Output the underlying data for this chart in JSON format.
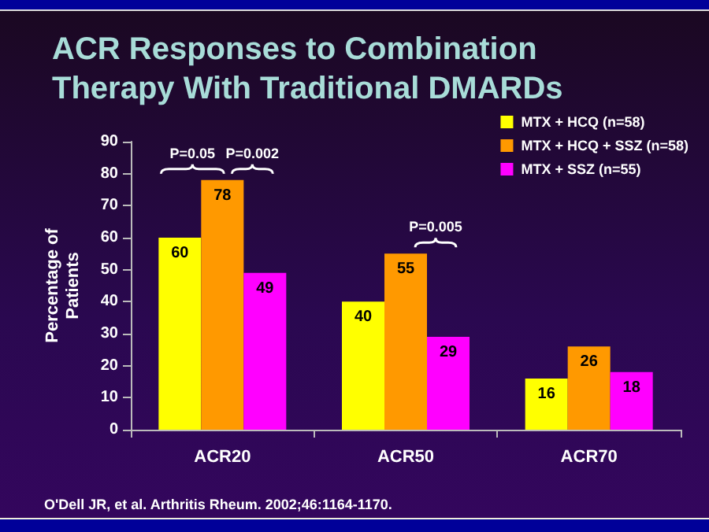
{
  "chart_data": {
    "type": "bar",
    "title": "ACR Responses to Combination\nTherapy With Traditional DMARDs",
    "categories": [
      "ACR20",
      "ACR50",
      "ACR70"
    ],
    "series": [
      {
        "name": "MTX + HCQ (n=58)",
        "color": "#ffff00",
        "values": [
          60,
          40,
          16
        ]
      },
      {
        "name": "MTX + HCQ + SSZ (n=58)",
        "color": "#ff9900",
        "values": [
          78,
          55,
          26
        ]
      },
      {
        "name": "MTX + SSZ (n=55)",
        "color": "#ff00ff",
        "values": [
          49,
          29,
          18
        ]
      }
    ],
    "ylabel": "Percentage of\nPatients",
    "ylim": [
      0,
      90
    ],
    "yticks": [
      0,
      10,
      20,
      30,
      40,
      50,
      60,
      70,
      80,
      90
    ],
    "data_labels": true,
    "legend": "top right",
    "grid": false,
    "annotations": [
      "P=0.05",
      "P=0.002",
      "P=0.005",
      "O'Dell JR, et al. Arthritis Rheum. 2002;46:1164-1170."
    ]
  }
}
